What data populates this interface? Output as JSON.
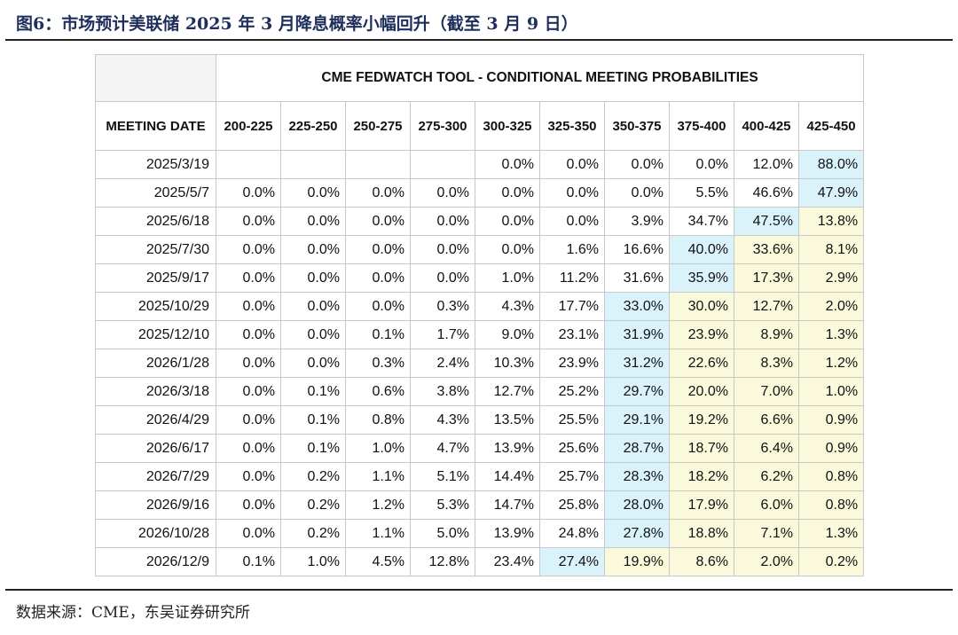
{
  "figure": {
    "title": "图6：市场预计美联储 2025 年 3 月降息概率小幅回升（截至 3 月 9 日）",
    "source": "数据来源：CME，东吴证券研究所"
  },
  "table": {
    "tool_title": "CME FEDWATCH TOOL - CONDITIONAL MEETING PROBABILITIES",
    "date_header": "MEETING DATE",
    "bins": [
      "200-225",
      "225-250",
      "250-275",
      "275-300",
      "300-325",
      "325-350",
      "350-375",
      "375-400",
      "400-425",
      "425-450"
    ],
    "rows": [
      {
        "date": "2025/3/19",
        "values": [
          "",
          "",
          "",
          "",
          "0.0%",
          "0.0%",
          "0.0%",
          "0.0%",
          "12.0%",
          "88.0%"
        ],
        "highlight": [
          "",
          "",
          "",
          "",
          "",
          "",
          "",
          "",
          "",
          "blue"
        ]
      },
      {
        "date": "2025/5/7",
        "values": [
          "0.0%",
          "0.0%",
          "0.0%",
          "0.0%",
          "0.0%",
          "0.0%",
          "0.0%",
          "5.5%",
          "46.6%",
          "47.9%"
        ],
        "highlight": [
          "",
          "",
          "",
          "",
          "",
          "",
          "",
          "",
          "",
          "blue"
        ]
      },
      {
        "date": "2025/6/18",
        "values": [
          "0.0%",
          "0.0%",
          "0.0%",
          "0.0%",
          "0.0%",
          "0.0%",
          "3.9%",
          "34.7%",
          "47.5%",
          "13.8%"
        ],
        "highlight": [
          "",
          "",
          "",
          "",
          "",
          "",
          "",
          "",
          "blue",
          "yellow"
        ]
      },
      {
        "date": "2025/7/30",
        "values": [
          "0.0%",
          "0.0%",
          "0.0%",
          "0.0%",
          "0.0%",
          "1.6%",
          "16.6%",
          "40.0%",
          "33.6%",
          "8.1%"
        ],
        "highlight": [
          "",
          "",
          "",
          "",
          "",
          "",
          "",
          "blue",
          "yellow",
          "yellow"
        ]
      },
      {
        "date": "2025/9/17",
        "values": [
          "0.0%",
          "0.0%",
          "0.0%",
          "0.0%",
          "1.0%",
          "11.2%",
          "31.6%",
          "35.9%",
          "17.3%",
          "2.9%"
        ],
        "highlight": [
          "",
          "",
          "",
          "",
          "",
          "",
          "",
          "blue",
          "yellow",
          "yellow"
        ]
      },
      {
        "date": "2025/10/29",
        "values": [
          "0.0%",
          "0.0%",
          "0.0%",
          "0.3%",
          "4.3%",
          "17.7%",
          "33.0%",
          "30.0%",
          "12.7%",
          "2.0%"
        ],
        "highlight": [
          "",
          "",
          "",
          "",
          "",
          "",
          "blue",
          "yellow",
          "yellow",
          "yellow"
        ]
      },
      {
        "date": "2025/12/10",
        "values": [
          "0.0%",
          "0.0%",
          "0.1%",
          "1.7%",
          "9.0%",
          "23.1%",
          "31.9%",
          "23.9%",
          "8.9%",
          "1.3%"
        ],
        "highlight": [
          "",
          "",
          "",
          "",
          "",
          "",
          "blue",
          "yellow",
          "yellow",
          "yellow"
        ]
      },
      {
        "date": "2026/1/28",
        "values": [
          "0.0%",
          "0.0%",
          "0.3%",
          "2.4%",
          "10.3%",
          "23.9%",
          "31.2%",
          "22.6%",
          "8.3%",
          "1.2%"
        ],
        "highlight": [
          "",
          "",
          "",
          "",
          "",
          "",
          "blue",
          "yellow",
          "yellow",
          "yellow"
        ]
      },
      {
        "date": "2026/3/18",
        "values": [
          "0.0%",
          "0.1%",
          "0.6%",
          "3.8%",
          "12.7%",
          "25.2%",
          "29.7%",
          "20.0%",
          "7.0%",
          "1.0%"
        ],
        "highlight": [
          "",
          "",
          "",
          "",
          "",
          "",
          "blue",
          "yellow",
          "yellow",
          "yellow"
        ]
      },
      {
        "date": "2026/4/29",
        "values": [
          "0.0%",
          "0.1%",
          "0.8%",
          "4.3%",
          "13.5%",
          "25.5%",
          "29.1%",
          "19.2%",
          "6.6%",
          "0.9%"
        ],
        "highlight": [
          "",
          "",
          "",
          "",
          "",
          "",
          "blue",
          "yellow",
          "yellow",
          "yellow"
        ]
      },
      {
        "date": "2026/6/17",
        "values": [
          "0.0%",
          "0.1%",
          "1.0%",
          "4.7%",
          "13.9%",
          "25.6%",
          "28.7%",
          "18.7%",
          "6.4%",
          "0.9%"
        ],
        "highlight": [
          "",
          "",
          "",
          "",
          "",
          "",
          "blue",
          "yellow",
          "yellow",
          "yellow"
        ]
      },
      {
        "date": "2026/7/29",
        "values": [
          "0.0%",
          "0.2%",
          "1.1%",
          "5.1%",
          "14.4%",
          "25.7%",
          "28.3%",
          "18.2%",
          "6.2%",
          "0.8%"
        ],
        "highlight": [
          "",
          "",
          "",
          "",
          "",
          "",
          "blue",
          "yellow",
          "yellow",
          "yellow"
        ]
      },
      {
        "date": "2026/9/16",
        "values": [
          "0.0%",
          "0.2%",
          "1.2%",
          "5.3%",
          "14.7%",
          "25.8%",
          "28.0%",
          "17.9%",
          "6.0%",
          "0.8%"
        ],
        "highlight": [
          "",
          "",
          "",
          "",
          "",
          "",
          "blue",
          "yellow",
          "yellow",
          "yellow"
        ]
      },
      {
        "date": "2026/10/28",
        "values": [
          "0.0%",
          "0.2%",
          "1.1%",
          "5.0%",
          "13.9%",
          "24.8%",
          "27.8%",
          "18.8%",
          "7.1%",
          "1.3%"
        ],
        "highlight": [
          "",
          "",
          "",
          "",
          "",
          "",
          "blue",
          "yellow",
          "yellow",
          "yellow"
        ]
      },
      {
        "date": "2026/12/9",
        "values": [
          "0.1%",
          "1.0%",
          "4.5%",
          "12.8%",
          "23.4%",
          "27.4%",
          "19.9%",
          "8.6%",
          "2.0%",
          "0.2%"
        ],
        "highlight": [
          "",
          "",
          "",
          "",
          "",
          "blue",
          "yellow",
          "yellow",
          "yellow",
          "yellow"
        ]
      }
    ]
  },
  "colors": {
    "highlight_blue": "#daf2fa",
    "highlight_yellow": "#fbf9dc",
    "title_navy": "#1f2f5c",
    "grid": "#c8c8c8"
  }
}
